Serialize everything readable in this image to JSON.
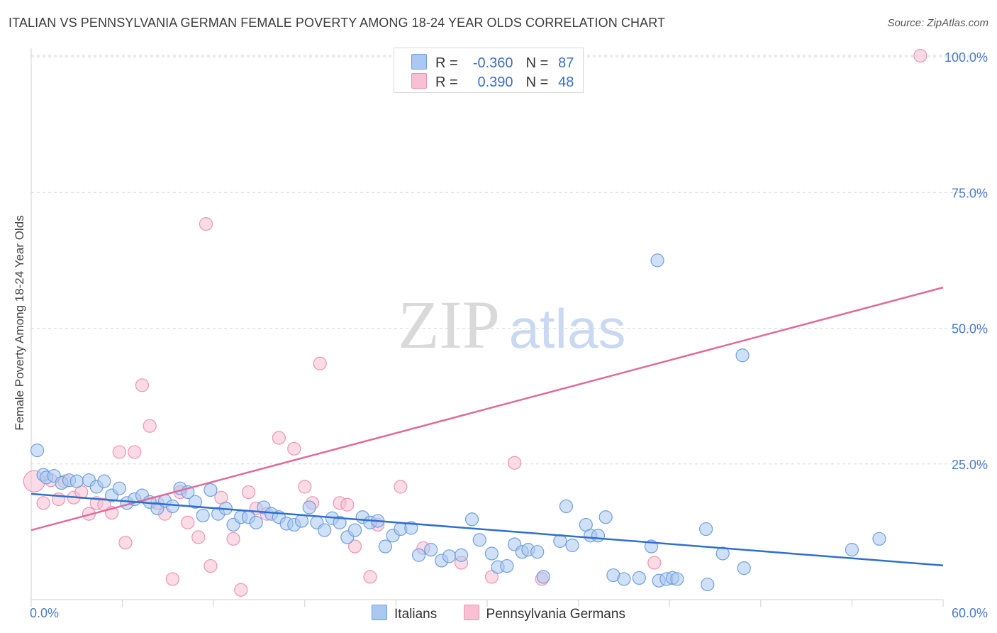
{
  "header": {
    "title": "ITALIAN VS PENNSYLVANIA GERMAN FEMALE POVERTY AMONG 18-24 YEAR OLDS CORRELATION CHART",
    "source": "Source: ZipAtlas.com"
  },
  "watermark": {
    "zip": "ZIP",
    "atlas": "atlas"
  },
  "legend": {
    "rows": [
      {
        "r_label": "R =",
        "r_value": "-0.360",
        "n_label": "N =",
        "n_value": "87"
      },
      {
        "r_label": "R =",
        "r_value": "0.390",
        "n_label": "N =",
        "n_value": "48"
      }
    ]
  },
  "chart_data": {
    "type": "scatter",
    "title": "ITALIAN VS PENNSYLVANIA GERMAN FEMALE POVERTY AMONG 18-24 YEAR OLDS CORRELATION CHART",
    "ylabel": "Female Poverty Among 18-24 Year Olds",
    "xlim": [
      0,
      60
    ],
    "ylim": [
      0,
      105
    ],
    "x_tick_labels": [
      {
        "value": 0,
        "label": "0.0%"
      },
      {
        "value": 60,
        "label": "60.0%"
      }
    ],
    "y_tick_labels": [
      {
        "value": 25,
        "label": "25.0%"
      },
      {
        "value": 50,
        "label": "50.0%"
      },
      {
        "value": 75,
        "label": "75.0%"
      },
      {
        "value": 100,
        "label": "100.0%"
      }
    ],
    "grid": "horizontal-dashed",
    "legend_position": "top-center",
    "colors": {
      "italians_fill": "#aac8f0",
      "italians_stroke": "#6f9fe0",
      "italians_line": "#2f6fcf",
      "pg_fill": "#f8c0d2",
      "pg_stroke": "#ee93b2",
      "pg_line": "#e06b96",
      "grid": "#d6d6d6",
      "tick": "#4a7cc9"
    },
    "series": [
      {
        "name": "Italians",
        "trend": {
          "x": [
            0,
            60
          ],
          "y": [
            19.5,
            6.3
          ]
        },
        "points": [
          [
            0.4,
            27.5
          ],
          [
            0.8,
            23.0
          ],
          [
            1.0,
            22.5
          ],
          [
            1.5,
            22.8
          ],
          [
            2.0,
            21.5
          ],
          [
            2.5,
            22.0
          ],
          [
            3.0,
            21.8
          ],
          [
            3.8,
            22.0
          ],
          [
            4.3,
            20.8
          ],
          [
            4.8,
            21.8
          ],
          [
            5.3,
            19.2
          ],
          [
            5.8,
            20.5
          ],
          [
            6.3,
            17.8
          ],
          [
            6.8,
            18.5
          ],
          [
            7.3,
            19.2
          ],
          [
            7.8,
            18.0
          ],
          [
            8.3,
            16.8
          ],
          [
            8.8,
            18.2
          ],
          [
            9.3,
            17.2
          ],
          [
            9.8,
            20.5
          ],
          [
            10.3,
            19.8
          ],
          [
            10.8,
            18.0
          ],
          [
            11.3,
            15.5
          ],
          [
            11.8,
            20.2
          ],
          [
            12.3,
            15.8
          ],
          [
            12.8,
            16.8
          ],
          [
            13.3,
            13.8
          ],
          [
            13.8,
            15.2
          ],
          [
            14.3,
            15.2
          ],
          [
            14.8,
            14.2
          ],
          [
            15.3,
            17.0
          ],
          [
            15.8,
            15.8
          ],
          [
            16.3,
            15.2
          ],
          [
            16.8,
            14.0
          ],
          [
            17.3,
            13.8
          ],
          [
            17.8,
            14.5
          ],
          [
            18.3,
            17.0
          ],
          [
            18.8,
            14.2
          ],
          [
            19.3,
            12.8
          ],
          [
            19.8,
            15.0
          ],
          [
            20.3,
            14.2
          ],
          [
            20.8,
            11.5
          ],
          [
            21.3,
            12.8
          ],
          [
            21.8,
            15.2
          ],
          [
            22.3,
            14.2
          ],
          [
            22.8,
            14.5
          ],
          [
            23.3,
            9.8
          ],
          [
            23.8,
            11.8
          ],
          [
            24.3,
            13.0
          ],
          [
            25.0,
            13.2
          ],
          [
            25.5,
            8.2
          ],
          [
            26.3,
            9.2
          ],
          [
            27.0,
            7.2
          ],
          [
            27.5,
            8.0
          ],
          [
            28.3,
            8.2
          ],
          [
            29.0,
            14.8
          ],
          [
            29.5,
            11.0
          ],
          [
            30.3,
            8.5
          ],
          [
            30.7,
            6.0
          ],
          [
            31.3,
            6.2
          ],
          [
            31.8,
            10.2
          ],
          [
            32.3,
            8.8
          ],
          [
            32.7,
            9.2
          ],
          [
            33.3,
            8.8
          ],
          [
            33.7,
            4.2
          ],
          [
            34.8,
            10.8
          ],
          [
            35.2,
            17.2
          ],
          [
            35.6,
            10.0
          ],
          [
            36.5,
            13.8
          ],
          [
            36.8,
            11.8
          ],
          [
            37.3,
            11.8
          ],
          [
            37.8,
            15.2
          ],
          [
            38.3,
            4.5
          ],
          [
            39.0,
            3.8
          ],
          [
            40.0,
            4.0
          ],
          [
            40.8,
            9.8
          ],
          [
            41.3,
            3.5
          ],
          [
            41.8,
            3.8
          ],
          [
            42.2,
            4.0
          ],
          [
            42.5,
            3.8
          ],
          [
            41.2,
            62.5
          ],
          [
            44.4,
            13.0
          ],
          [
            44.5,
            2.8
          ],
          [
            45.5,
            8.5
          ],
          [
            46.8,
            45.0
          ],
          [
            46.9,
            5.8
          ],
          [
            54.0,
            9.2
          ],
          [
            55.8,
            11.2
          ]
        ]
      },
      {
        "name": "Pennsylvania Germans",
        "trend": {
          "x": [
            0,
            60
          ],
          "y": [
            12.8,
            57.5
          ]
        },
        "points": [
          [
            0.2,
            21.8
          ],
          [
            0.8,
            17.8
          ],
          [
            1.3,
            22.0
          ],
          [
            1.8,
            18.5
          ],
          [
            2.2,
            21.8
          ],
          [
            2.8,
            18.8
          ],
          [
            3.3,
            19.8
          ],
          [
            3.8,
            15.8
          ],
          [
            4.3,
            17.8
          ],
          [
            4.8,
            17.5
          ],
          [
            5.3,
            16.0
          ],
          [
            5.8,
            27.2
          ],
          [
            6.2,
            10.5
          ],
          [
            6.8,
            27.2
          ],
          [
            7.3,
            39.5
          ],
          [
            7.8,
            32.0
          ],
          [
            8.3,
            17.8
          ],
          [
            8.8,
            15.8
          ],
          [
            9.3,
            3.8
          ],
          [
            9.8,
            19.8
          ],
          [
            10.3,
            14.2
          ],
          [
            11.0,
            11.5
          ],
          [
            11.5,
            69.2
          ],
          [
            11.8,
            6.2
          ],
          [
            12.5,
            18.8
          ],
          [
            13.3,
            11.2
          ],
          [
            13.8,
            1.8
          ],
          [
            14.3,
            19.8
          ],
          [
            14.8,
            16.8
          ],
          [
            15.5,
            15.8
          ],
          [
            16.3,
            29.8
          ],
          [
            17.3,
            27.8
          ],
          [
            18.0,
            20.8
          ],
          [
            18.5,
            17.8
          ],
          [
            19.0,
            43.5
          ],
          [
            20.3,
            17.8
          ],
          [
            20.8,
            17.5
          ],
          [
            21.3,
            9.8
          ],
          [
            22.3,
            4.2
          ],
          [
            22.8,
            13.8
          ],
          [
            24.3,
            20.8
          ],
          [
            25.8,
            9.5
          ],
          [
            28.3,
            6.8
          ],
          [
            30.3,
            4.2
          ],
          [
            31.8,
            25.2
          ],
          [
            41.0,
            6.8
          ],
          [
            58.5,
            100.2
          ],
          [
            33.6,
            3.8
          ]
        ]
      }
    ]
  },
  "bottom_legend": [
    {
      "label": "Italians"
    },
    {
      "label": "Pennsylvania Germans"
    }
  ]
}
